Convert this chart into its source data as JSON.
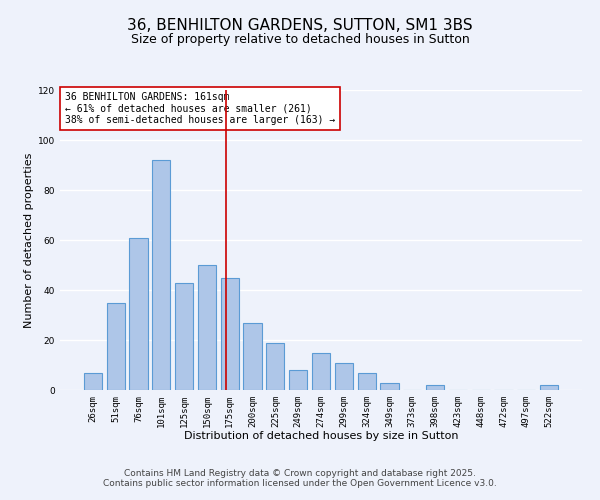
{
  "title": "36, BENHILTON GARDENS, SUTTON, SM1 3BS",
  "subtitle": "Size of property relative to detached houses in Sutton",
  "xlabel": "Distribution of detached houses by size in Sutton",
  "ylabel": "Number of detached properties",
  "categories": [
    "26sqm",
    "51sqm",
    "76sqm",
    "101sqm",
    "125sqm",
    "150sqm",
    "175sqm",
    "200sqm",
    "225sqm",
    "249sqm",
    "274sqm",
    "299sqm",
    "324sqm",
    "349sqm",
    "373sqm",
    "398sqm",
    "423sqm",
    "448sqm",
    "472sqm",
    "497sqm",
    "522sqm"
  ],
  "values": [
    7,
    35,
    61,
    92,
    43,
    50,
    45,
    27,
    19,
    8,
    15,
    11,
    7,
    3,
    0,
    2,
    0,
    0,
    0,
    0,
    2
  ],
  "bar_color": "#aec6e8",
  "bar_edge_color": "#5b9bd5",
  "bar_edge_width": 0.8,
  "vline_x": 5.84,
  "vline_color": "#cc0000",
  "annotation_text": "36 BENHILTON GARDENS: 161sqm\n← 61% of detached houses are smaller (261)\n38% of semi-detached houses are larger (163) →",
  "annotation_box_color": "#ffffff",
  "annotation_box_edge": "#cc0000",
  "ylim": [
    0,
    120
  ],
  "yticks": [
    0,
    20,
    40,
    60,
    80,
    100,
    120
  ],
  "footer1": "Contains HM Land Registry data © Crown copyright and database right 2025.",
  "footer2": "Contains public sector information licensed under the Open Government Licence v3.0.",
  "bg_color": "#eef2fb",
  "grid_color": "#ffffff",
  "title_fontsize": 11,
  "subtitle_fontsize": 9,
  "label_fontsize": 8,
  "tick_fontsize": 6.5,
  "annotation_fontsize": 7,
  "footer_fontsize": 6.5
}
